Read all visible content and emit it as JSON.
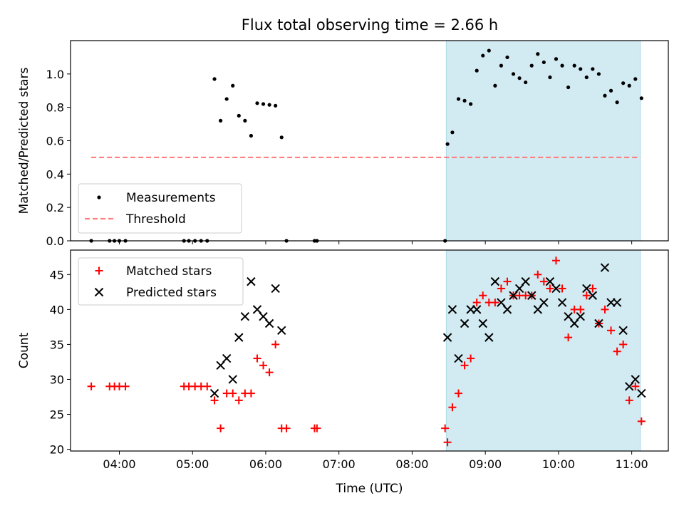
{
  "figure": {
    "title": "Flux total observing time = 2.66 h"
  },
  "colors": {
    "measurement": "#000000",
    "threshold": "#ff7f7f",
    "matched": "#ff0000",
    "predicted": "#000000",
    "shade": "#add8e6"
  },
  "chart_data": [
    {
      "type": "scatter",
      "ylabel": "Matched/Predicted stars",
      "ylim": [
        0,
        1.2
      ],
      "yticks": [
        "0.0",
        "0.2",
        "0.4",
        "0.6",
        "0.8",
        "1.0"
      ],
      "xlim": [
        "03:20",
        "11:30"
      ],
      "shaded_span": [
        "08:28",
        "11:07"
      ],
      "legend_position": "lower-left",
      "threshold": {
        "name": "Threshold",
        "y": 0.5,
        "x": [
          "03:37",
          "11:07"
        ]
      },
      "series": [
        {
          "name": "Measurements",
          "marker": "dot",
          "points": [
            [
              "03:37",
              0.0
            ],
            [
              "03:52",
              0.0
            ],
            [
              "03:56",
              0.0
            ],
            [
              "04:00",
              0.0
            ],
            [
              "04:05",
              0.0
            ],
            [
              "04:53",
              0.0
            ],
            [
              "04:57",
              0.0
            ],
            [
              "05:02",
              0.0
            ],
            [
              "05:07",
              0.0
            ],
            [
              "05:12",
              0.0
            ],
            [
              "05:18",
              0.97
            ],
            [
              "05:23",
              0.72
            ],
            [
              "05:28",
              0.85
            ],
            [
              "05:33",
              0.93
            ],
            [
              "05:38",
              0.75
            ],
            [
              "05:43",
              0.72
            ],
            [
              "05:48",
              0.63
            ],
            [
              "05:53",
              0.825
            ],
            [
              "05:58",
              0.82
            ],
            [
              "06:03",
              0.815
            ],
            [
              "06:08",
              0.81
            ],
            [
              "06:13",
              0.62
            ],
            [
              "06:17",
              0.0
            ],
            [
              "06:40",
              0.0
            ],
            [
              "06:42",
              0.0
            ],
            [
              "08:27",
              0.0
            ],
            [
              "08:29",
              0.58
            ],
            [
              "08:33",
              0.65
            ],
            [
              "08:38",
              0.85
            ],
            [
              "08:43",
              0.84
            ],
            [
              "08:48",
              0.82
            ],
            [
              "08:53",
              1.02
            ],
            [
              "08:58",
              1.11
            ],
            [
              "09:03",
              1.14
            ],
            [
              "09:08",
              0.93
            ],
            [
              "09:13",
              1.05
            ],
            [
              "09:18",
              1.1
            ],
            [
              "09:23",
              1.0
            ],
            [
              "09:28",
              0.975
            ],
            [
              "09:33",
              0.95
            ],
            [
              "09:38",
              1.05
            ],
            [
              "09:43",
              1.12
            ],
            [
              "09:48",
              1.07
            ],
            [
              "09:53",
              0.98
            ],
            [
              "09:58",
              1.09
            ],
            [
              "10:03",
              1.05
            ],
            [
              "10:08",
              0.92
            ],
            [
              "10:13",
              1.05
            ],
            [
              "10:18",
              1.03
            ],
            [
              "10:23",
              0.98
            ],
            [
              "10:28",
              1.03
            ],
            [
              "10:33",
              1.0
            ],
            [
              "10:38",
              0.87
            ],
            [
              "10:43",
              0.9
            ],
            [
              "10:48",
              0.83
            ],
            [
              "10:53",
              0.945
            ],
            [
              "10:58",
              0.93
            ],
            [
              "11:03",
              0.97
            ],
            [
              "11:08",
              0.855
            ]
          ]
        }
      ]
    },
    {
      "type": "scatter",
      "xlabel": "Time (UTC)",
      "ylabel": "Count",
      "ylim": [
        19.75,
        48.5
      ],
      "yticks": [
        "20",
        "25",
        "30",
        "35",
        "40",
        "45"
      ],
      "xlim": [
        "03:20",
        "11:30"
      ],
      "xticks": [
        "04:00",
        "05:00",
        "06:00",
        "07:00",
        "08:00",
        "09:00",
        "10:00",
        "11:00"
      ],
      "shaded_span": [
        "08:28",
        "11:07"
      ],
      "legend_position": "upper-left",
      "series": [
        {
          "name": "Matched stars",
          "marker": "plus",
          "points": [
            [
              "03:37",
              29
            ],
            [
              "03:52",
              29
            ],
            [
              "03:56",
              29
            ],
            [
              "04:00",
              29
            ],
            [
              "04:05",
              29
            ],
            [
              "04:53",
              29
            ],
            [
              "04:57",
              29
            ],
            [
              "05:02",
              29
            ],
            [
              "05:07",
              29
            ],
            [
              "05:12",
              29
            ],
            [
              "05:18",
              27
            ],
            [
              "05:23",
              23
            ],
            [
              "05:28",
              28
            ],
            [
              "05:33",
              28
            ],
            [
              "05:38",
              27
            ],
            [
              "05:43",
              28
            ],
            [
              "05:48",
              28
            ],
            [
              "05:53",
              33
            ],
            [
              "05:58",
              32
            ],
            [
              "06:03",
              31
            ],
            [
              "06:08",
              35
            ],
            [
              "06:13",
              23
            ],
            [
              "06:17",
              23
            ],
            [
              "06:40",
              23
            ],
            [
              "06:42",
              23
            ],
            [
              "08:27",
              23
            ],
            [
              "08:29",
              21
            ],
            [
              "08:33",
              26
            ],
            [
              "08:38",
              28
            ],
            [
              "08:43",
              32
            ],
            [
              "08:48",
              33
            ],
            [
              "08:53",
              41
            ],
            [
              "08:58",
              42
            ],
            [
              "09:03",
              41
            ],
            [
              "09:08",
              41
            ],
            [
              "09:13",
              43
            ],
            [
              "09:18",
              44
            ],
            [
              "09:23",
              42
            ],
            [
              "09:28",
              42
            ],
            [
              "09:33",
              42
            ],
            [
              "09:38",
              42
            ],
            [
              "09:43",
              45
            ],
            [
              "09:48",
              44
            ],
            [
              "09:53",
              43
            ],
            [
              "09:58",
              47
            ],
            [
              "10:03",
              43
            ],
            [
              "10:08",
              36
            ],
            [
              "10:13",
              40
            ],
            [
              "10:18",
              40
            ],
            [
              "10:23",
              42
            ],
            [
              "10:28",
              43
            ],
            [
              "10:33",
              38
            ],
            [
              "10:38",
              40
            ],
            [
              "10:43",
              37
            ],
            [
              "10:48",
              34
            ],
            [
              "10:53",
              35
            ],
            [
              "10:58",
              27
            ],
            [
              "11:03",
              29
            ],
            [
              "11:08",
              24
            ]
          ]
        },
        {
          "name": "Predicted stars",
          "marker": "x",
          "points": [
            [
              "05:18",
              28
            ],
            [
              "05:23",
              32
            ],
            [
              "05:28",
              33
            ],
            [
              "05:33",
              30
            ],
            [
              "05:38",
              36
            ],
            [
              "05:43",
              39
            ],
            [
              "05:48",
              44
            ],
            [
              "05:53",
              40
            ],
            [
              "05:58",
              39
            ],
            [
              "06:03",
              38
            ],
            [
              "06:08",
              43
            ],
            [
              "06:13",
              37
            ],
            [
              "08:29",
              36
            ],
            [
              "08:33",
              40
            ],
            [
              "08:38",
              33
            ],
            [
              "08:43",
              38
            ],
            [
              "08:48",
              40
            ],
            [
              "08:53",
              40
            ],
            [
              "08:58",
              38
            ],
            [
              "09:03",
              36
            ],
            [
              "09:08",
              44
            ],
            [
              "09:13",
              41
            ],
            [
              "09:18",
              40
            ],
            [
              "09:23",
              42
            ],
            [
              "09:28",
              43
            ],
            [
              "09:33",
              44
            ],
            [
              "09:38",
              42
            ],
            [
              "09:43",
              40
            ],
            [
              "09:48",
              41
            ],
            [
              "09:53",
              44
            ],
            [
              "09:58",
              43
            ],
            [
              "10:03",
              41
            ],
            [
              "10:08",
              39
            ],
            [
              "10:13",
              38
            ],
            [
              "10:18",
              39
            ],
            [
              "10:23",
              43
            ],
            [
              "10:28",
              42
            ],
            [
              "10:33",
              38
            ],
            [
              "10:38",
              46
            ],
            [
              "10:43",
              41
            ],
            [
              "10:48",
              41
            ],
            [
              "10:53",
              37
            ],
            [
              "10:58",
              29
            ],
            [
              "11:03",
              30
            ],
            [
              "11:08",
              28
            ]
          ]
        }
      ]
    }
  ]
}
